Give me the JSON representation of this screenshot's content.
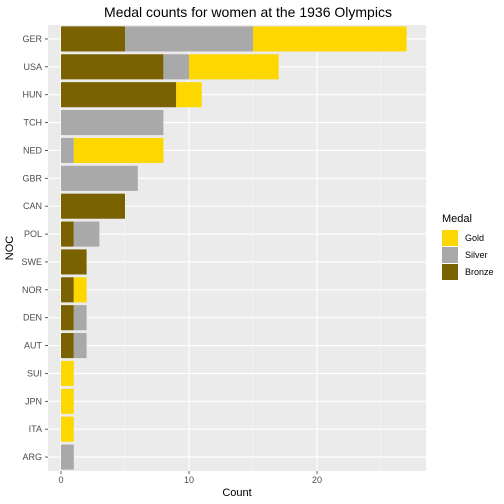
{
  "chart_data": {
    "type": "bar",
    "orientation": "horizontal",
    "stacked": true,
    "title": "Medal counts for women at the 1936 Olympics",
    "xlabel": "Count",
    "ylabel": "NOC",
    "xlim": [
      0,
      28
    ],
    "x_ticks": [
      0,
      10,
      20
    ],
    "categories": [
      "GER",
      "USA",
      "HUN",
      "TCH",
      "NED",
      "GBR",
      "CAN",
      "POL",
      "SWE",
      "NOR",
      "DEN",
      "AUT",
      "SUI",
      "JPN",
      "ITA",
      "ARG"
    ],
    "legend_title": "Medal",
    "legend_position": "right",
    "grid": true,
    "series": [
      {
        "name": "Bronze",
        "color": "#7A6200",
        "values": [
          5,
          8,
          9,
          0,
          0,
          0,
          5,
          1,
          2,
          1,
          1,
          1,
          0,
          0,
          0,
          0
        ]
      },
      {
        "name": "Silver",
        "color": "#A9A9A9",
        "values": [
          10,
          2,
          0,
          8,
          1,
          6,
          0,
          2,
          0,
          0,
          1,
          1,
          0,
          0,
          0,
          1
        ]
      },
      {
        "name": "Gold",
        "color": "#FFD700",
        "values": [
          12,
          7,
          2,
          0,
          7,
          0,
          0,
          0,
          0,
          1,
          0,
          0,
          1,
          1,
          1,
          0
        ]
      }
    ],
    "legend_order": [
      "Gold",
      "Silver",
      "Bronze"
    ]
  }
}
